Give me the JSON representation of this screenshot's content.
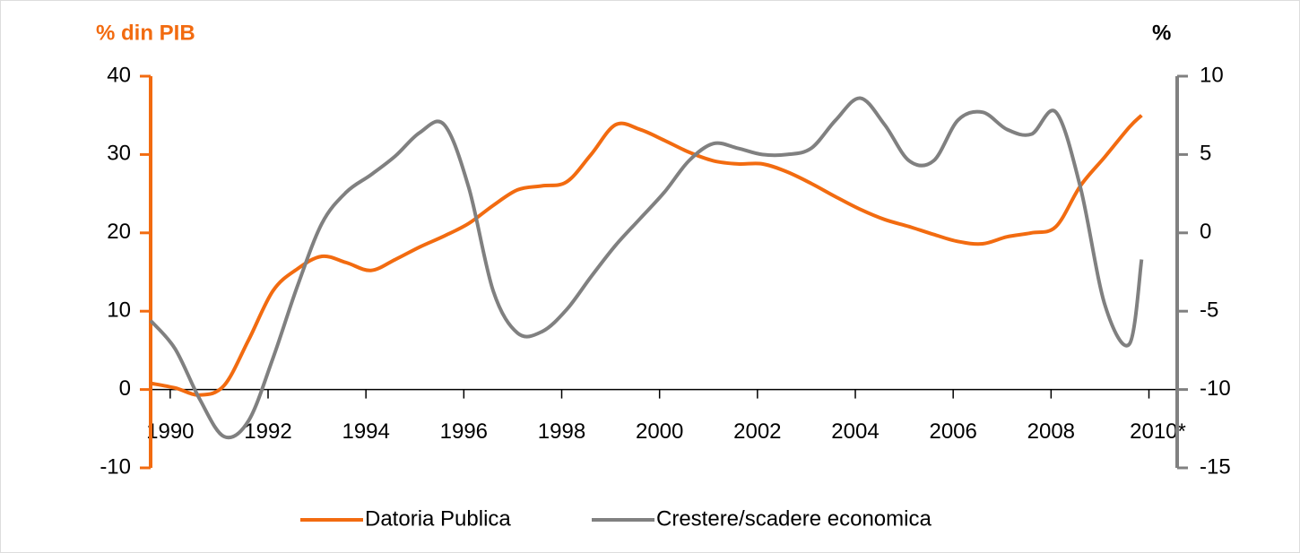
{
  "chart_data": {
    "type": "line",
    "y_label": "% din PIB",
    "y2_label": "%",
    "x": [
      1989.6,
      1990.1,
      1990.6,
      1991.1,
      1991.6,
      1992.1,
      1992.6,
      1993.1,
      1993.6,
      1994.1,
      1994.6,
      1995.1,
      1995.6,
      1996.1,
      1996.6,
      1997.1,
      1997.6,
      1998.1,
      1998.6,
      1999.1,
      1999.6,
      2000.1,
      2000.6,
      2001.1,
      2001.6,
      2002.1,
      2002.6,
      2003.1,
      2003.6,
      2004.1,
      2004.6,
      2005.1,
      2005.6,
      2006.1,
      2006.6,
      2007.1,
      2007.6,
      2008.1,
      2008.6,
      2009.1,
      2009.6,
      2009.85
    ],
    "series": [
      {
        "name": "Datoria Publica",
        "color": "#f26b10",
        "axis": "y",
        "values": [
          0.8,
          0.2,
          -0.7,
          0.5,
          6.3,
          12.6,
          15.4,
          17,
          16.2,
          15.2,
          16.6,
          18.2,
          19.6,
          21.2,
          23.5,
          25.5,
          26,
          26.5,
          30,
          33.8,
          33.2,
          31.8,
          30.3,
          29.2,
          28.8,
          28.8,
          27.8,
          26.3,
          24.6,
          23,
          21.7,
          20.8,
          19.8,
          18.9,
          18.6,
          19.5,
          20,
          20.8,
          26,
          29.7,
          33.5,
          35
        ]
      },
      {
        "name": "Crestere/scadere economica",
        "color": "#808080",
        "axis": "y2",
        "values": [
          -5.6,
          -7.4,
          -10.6,
          -13,
          -12,
          -8,
          -3.4,
          0.6,
          2.6,
          3.7,
          4.9,
          6.4,
          6.9,
          2.9,
          -3.7,
          -6.4,
          -6.3,
          -4.9,
          -2.8,
          -0.8,
          0.9,
          2.6,
          4.6,
          5.7,
          5.4,
          5,
          5,
          5.4,
          7.2,
          8.6,
          6.9,
          4.6,
          4.6,
          7.2,
          7.7,
          6.6,
          6.3,
          7.7,
          2.9,
          -4.6,
          -7.1,
          -1.7
        ]
      }
    ],
    "xlim": [
      1989.6,
      2010.3
    ],
    "xticks": [
      1990,
      1992,
      1994,
      1996,
      1998,
      2000,
      2002,
      2004,
      2006,
      2008,
      {
        "value": 2010,
        "label": "2010*"
      }
    ],
    "ylim": [
      -10,
      40
    ],
    "yticks": [
      -10,
      0,
      10,
      20,
      30,
      40
    ],
    "y2lim": [
      -15,
      10
    ],
    "y2ticks": [
      -15,
      -10,
      -5,
      0,
      5,
      10
    ],
    "y_axis_color": "#f26b10",
    "y2_axis_color": "#808080",
    "legend": "bottom"
  }
}
